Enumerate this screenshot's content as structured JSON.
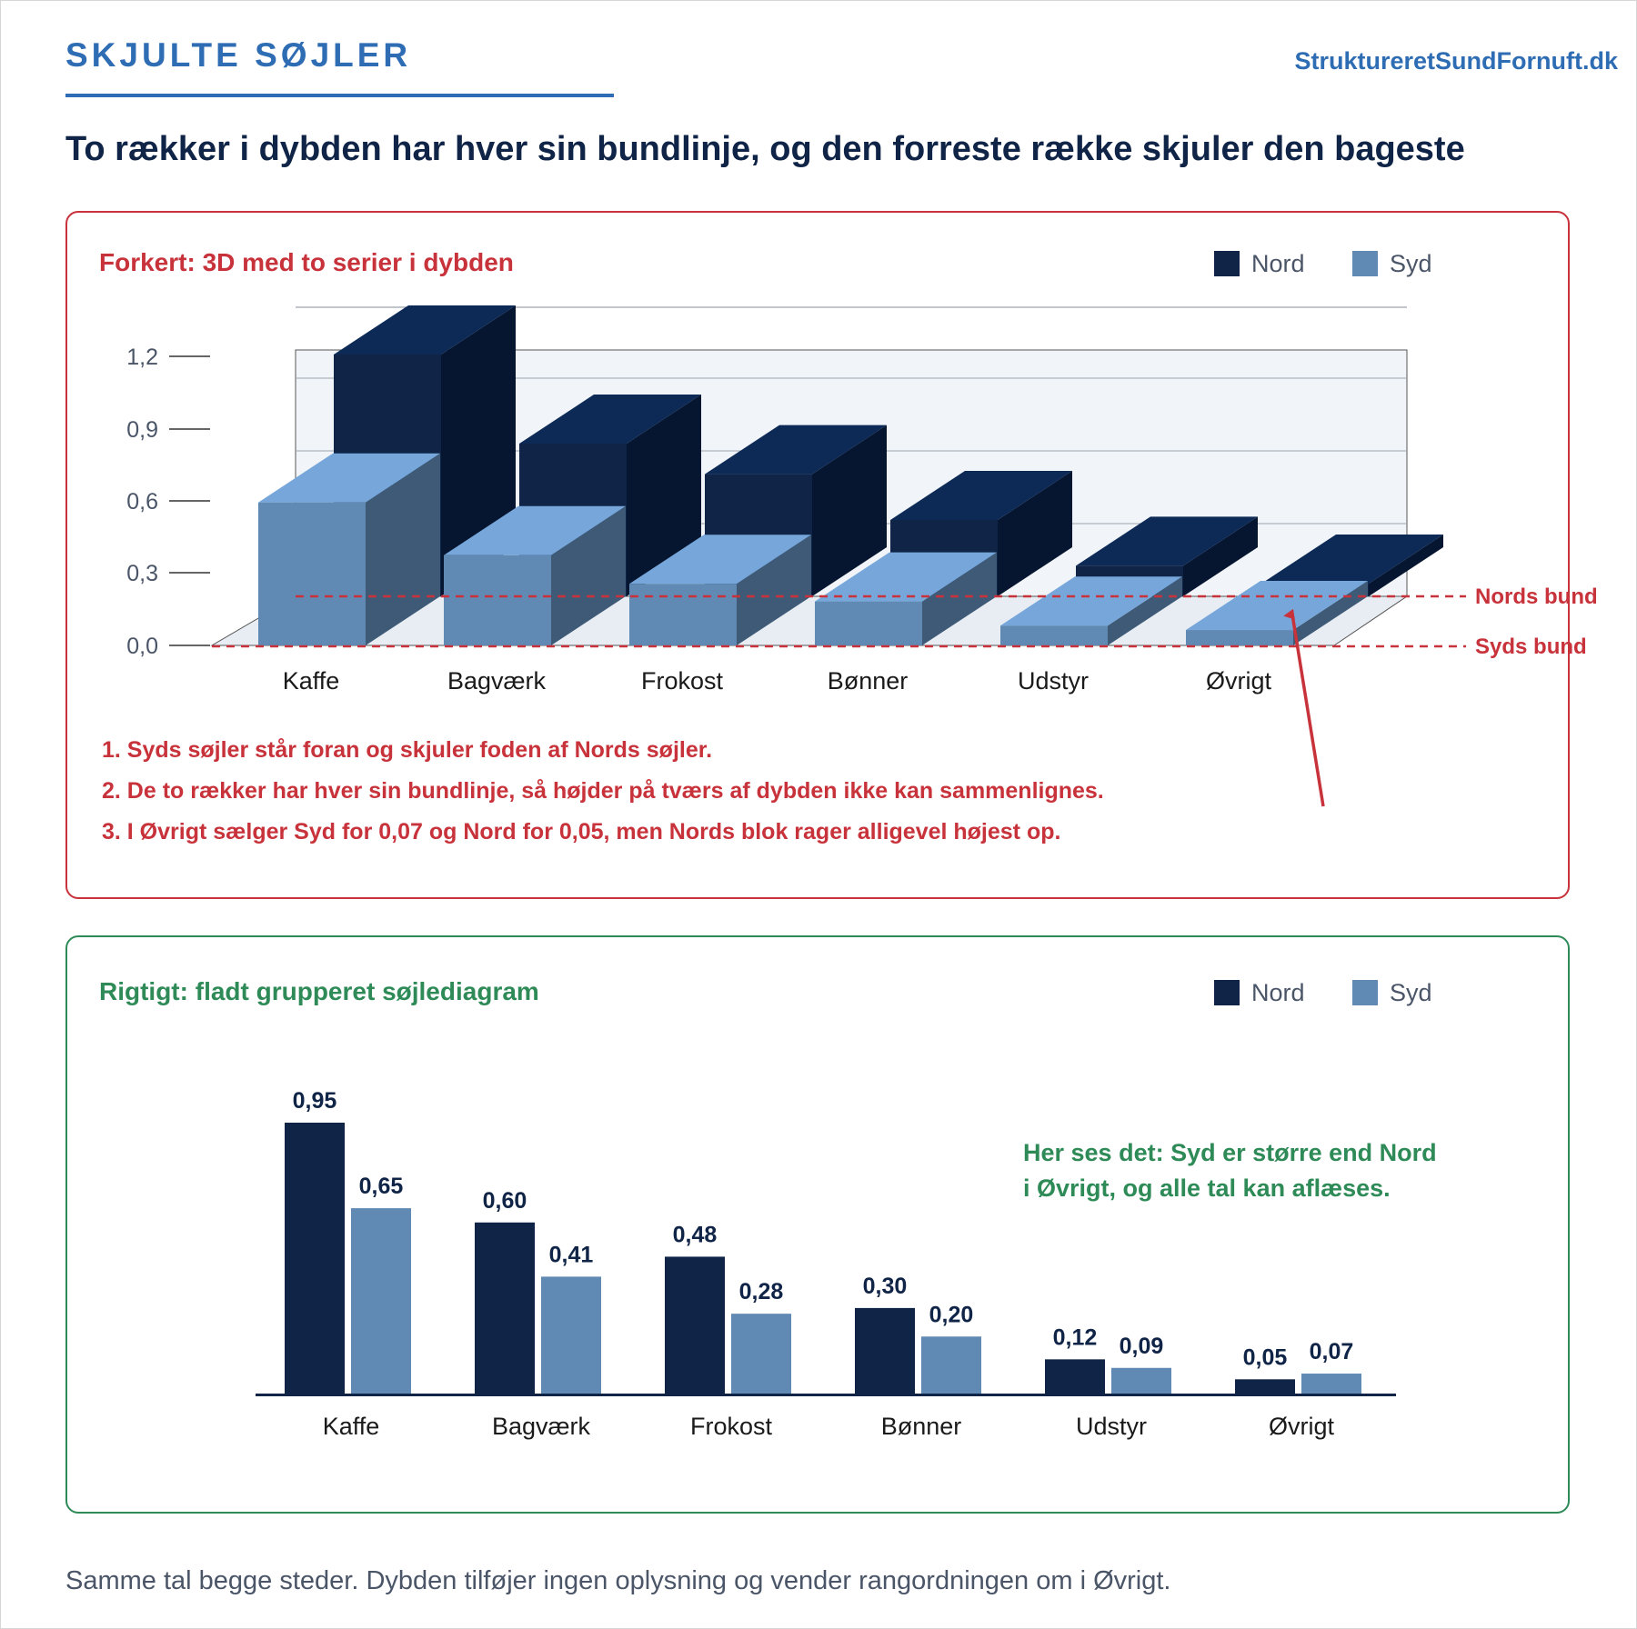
{
  "header": {
    "brand": "SKJULTE SØJLER",
    "site": "StruktureretSundFornuft.dk",
    "headline": "To rækker i dybden har hver sin bundlinje, og den forreste række skjuler den bageste"
  },
  "wrong_panel": {
    "title": "Forkert: 3D med to serier i dybden",
    "legend": [
      "Nord",
      "Syd"
    ],
    "y_ticks": [
      "1,2",
      "0,9",
      "0,6",
      "0,3",
      "0,0"
    ],
    "baseline_labels": {
      "nord": "Nords bund",
      "syd": "Syds bund"
    },
    "notes": [
      "1. Syds søjler står foran og skjuler foden af Nords søjler.",
      "2. De to rækker har hver sin bundlinje, så højder på tværs af dybden ikke kan sammenlignes.",
      "3. I Øvrigt sælger Syd for 0,07 og Nord for 0,05, men Nords blok rager alligevel højest op."
    ]
  },
  "right_panel": {
    "title": "Rigtigt: fladt grupperet søjlediagram",
    "legend": [
      "Nord",
      "Syd"
    ],
    "annotation_line1": "Her ses det: Syd er større end Nord",
    "annotation_line2": "i Øvrigt, og alle tal kan aflæses."
  },
  "footer": "Samme tal begge steder. Dybden tilføjer ingen oplysning og vender rangordningen om i Øvrigt.",
  "colors": {
    "nord": "#0f2446",
    "syd": "#6089b4",
    "bad": "#c8323a",
    "good": "#2e8b57",
    "brand": "#2e6db4"
  },
  "chart_data": [
    {
      "type": "bar",
      "variant": "3d-depth",
      "categories": [
        "Kaffe",
        "Bagværk",
        "Frokost",
        "Bønner",
        "Udstyr",
        "Øvrigt"
      ],
      "series": [
        {
          "name": "Nord",
          "values": [
            0.95,
            0.6,
            0.48,
            0.3,
            0.12,
            0.05
          ]
        },
        {
          "name": "Syd",
          "values": [
            0.65,
            0.41,
            0.28,
            0.2,
            0.09,
            0.07
          ]
        }
      ],
      "ylim": [
        0,
        1.2
      ],
      "grid": true,
      "legend": "top-right"
    },
    {
      "type": "bar",
      "variant": "grouped",
      "categories": [
        "Kaffe",
        "Bagværk",
        "Frokost",
        "Bønner",
        "Udstyr",
        "Øvrigt"
      ],
      "series": [
        {
          "name": "Nord",
          "values": [
            0.95,
            0.6,
            0.48,
            0.3,
            0.12,
            0.05
          ],
          "labels": [
            "0,95",
            "0,60",
            "0,48",
            "0,30",
            "0,12",
            "0,05"
          ]
        },
        {
          "name": "Syd",
          "values": [
            0.65,
            0.41,
            0.28,
            0.2,
            0.09,
            0.07
          ],
          "labels": [
            "0,65",
            "0,41",
            "0,28",
            "0,20",
            "0,09",
            "0,07"
          ]
        }
      ],
      "legend": "top-right",
      "grid": false
    }
  ]
}
